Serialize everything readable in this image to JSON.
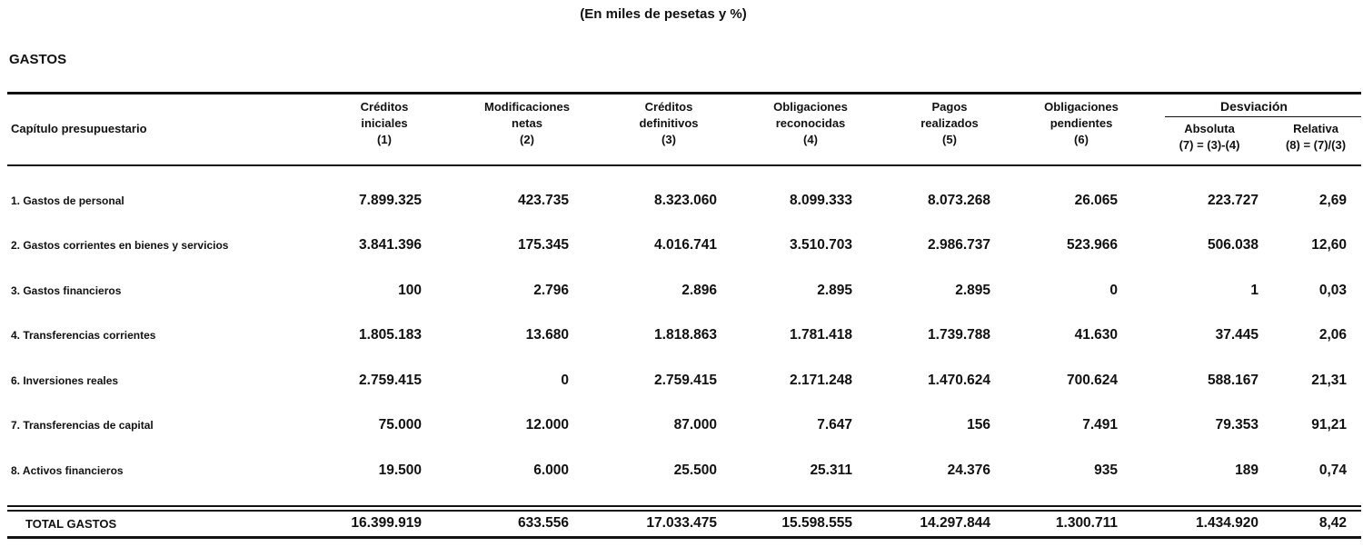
{
  "subtitle": "(En miles de pesetas y %)",
  "section": "GASTOS",
  "header": {
    "capitulo": "Capítulo presupuestario",
    "col1": [
      "Créditos",
      "iniciales",
      "(1)"
    ],
    "col2": [
      "Modificaciones",
      "netas",
      "(2)"
    ],
    "col3": [
      "Créditos",
      "definitivos",
      "(3)"
    ],
    "col4": [
      "Obligaciones",
      "reconocidas",
      "(4)"
    ],
    "col5": [
      "Pagos",
      "realizados",
      "(5)"
    ],
    "col6": [
      "Obligaciones",
      "pendientes",
      "(6)"
    ],
    "desviacion": "Desviación",
    "col7": [
      "Absoluta",
      "(7) = (3)-(4)"
    ],
    "col8": [
      "Relativa",
      "(8) = (7)/(3)"
    ]
  },
  "rows": [
    {
      "label": "1. Gastos de personal",
      "values": [
        "7.899.325",
        "423.735",
        "8.323.060",
        "8.099.333",
        "8.073.268",
        "26.065",
        "223.727",
        "2,69"
      ]
    },
    {
      "label": "2. Gastos corrientes en bienes y servicios",
      "values": [
        "3.841.396",
        "175.345",
        "4.016.741",
        "3.510.703",
        "2.986.737",
        "523.966",
        "506.038",
        "12,60"
      ]
    },
    {
      "label": "3. Gastos financieros",
      "values": [
        "100",
        "2.796",
        "2.896",
        "2.895",
        "2.895",
        "0",
        "1",
        "0,03"
      ]
    },
    {
      "label": "4. Transferencias corrientes",
      "values": [
        "1.805.183",
        "13.680",
        "1.818.863",
        "1.781.418",
        "1.739.788",
        "41.630",
        "37.445",
        "2,06"
      ]
    },
    {
      "label": "6. Inversiones reales",
      "values": [
        "2.759.415",
        "0",
        "2.759.415",
        "2.171.248",
        "1.470.624",
        "700.624",
        "588.167",
        "21,31"
      ]
    },
    {
      "label": "7. Transferencias de capital",
      "values": [
        "75.000",
        "12.000",
        "87.000",
        "7.647",
        "156",
        "7.491",
        "79.353",
        "91,21"
      ]
    },
    {
      "label": "8. Activos financieros",
      "values": [
        "19.500",
        "6.000",
        "25.500",
        "25.311",
        "24.376",
        "935",
        "189",
        "0,74"
      ]
    }
  ],
  "total": {
    "label": "TOTAL GASTOS",
    "values": [
      "16.399.919",
      "633.556",
      "17.033.475",
      "15.598.555",
      "14.297.844",
      "1.300.711",
      "1.434.920",
      "8,42"
    ]
  }
}
